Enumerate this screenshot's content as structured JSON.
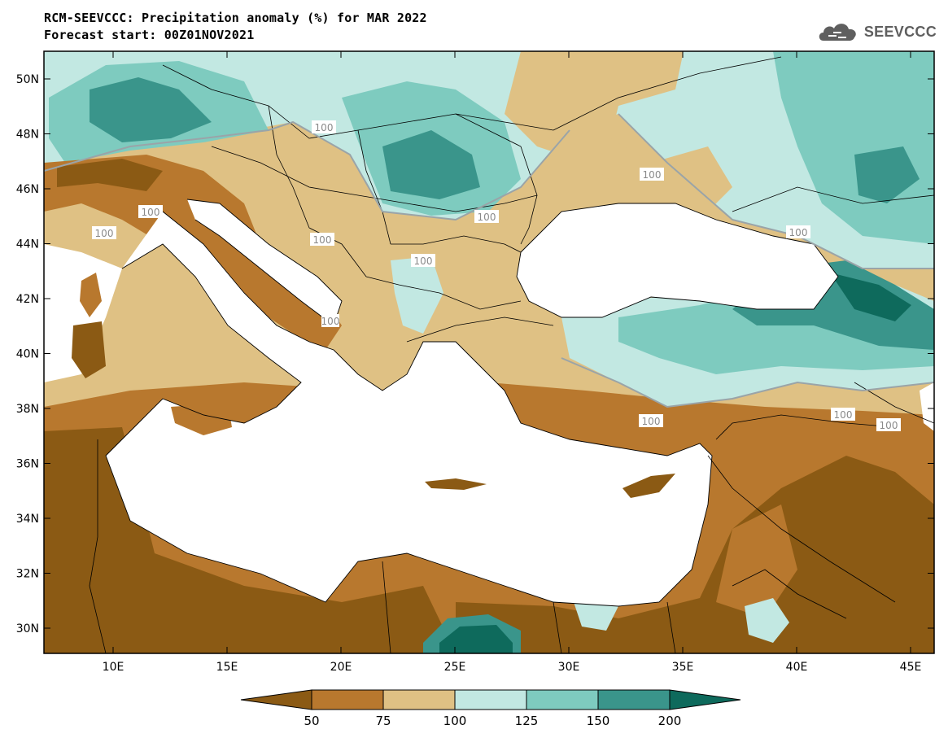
{
  "title": {
    "line1": "RCM-SEEVCCC: Precipitation anomaly (%) for MAR 2022",
    "line2": "Forecast start: 00Z01NOV2021"
  },
  "brand": {
    "name": "SEEVCCC",
    "icon": "cloud-logo-icon"
  },
  "map": {
    "lat_labels": [
      "50N",
      "48N",
      "46N",
      "44N",
      "42N",
      "40N",
      "38N",
      "36N",
      "34N",
      "32N",
      "30N"
    ],
    "lon_labels": [
      "10E",
      "15E",
      "20E",
      "25E",
      "30E",
      "35E",
      "40E",
      "45E"
    ],
    "contour_labels": [
      "100",
      "100",
      "100",
      "100",
      "100",
      "100",
      "100",
      "100",
      "100",
      "100",
      "100",
      "100"
    ]
  },
  "colorbar": {
    "labels": [
      "50",
      "75",
      "100",
      "125",
      "150",
      "200"
    ],
    "colors": [
      "#8B5A14",
      "#B8782E",
      "#DFC184",
      "#C2E8E2",
      "#7ECBBF",
      "#3A958B",
      "#0E6A5C"
    ]
  }
}
